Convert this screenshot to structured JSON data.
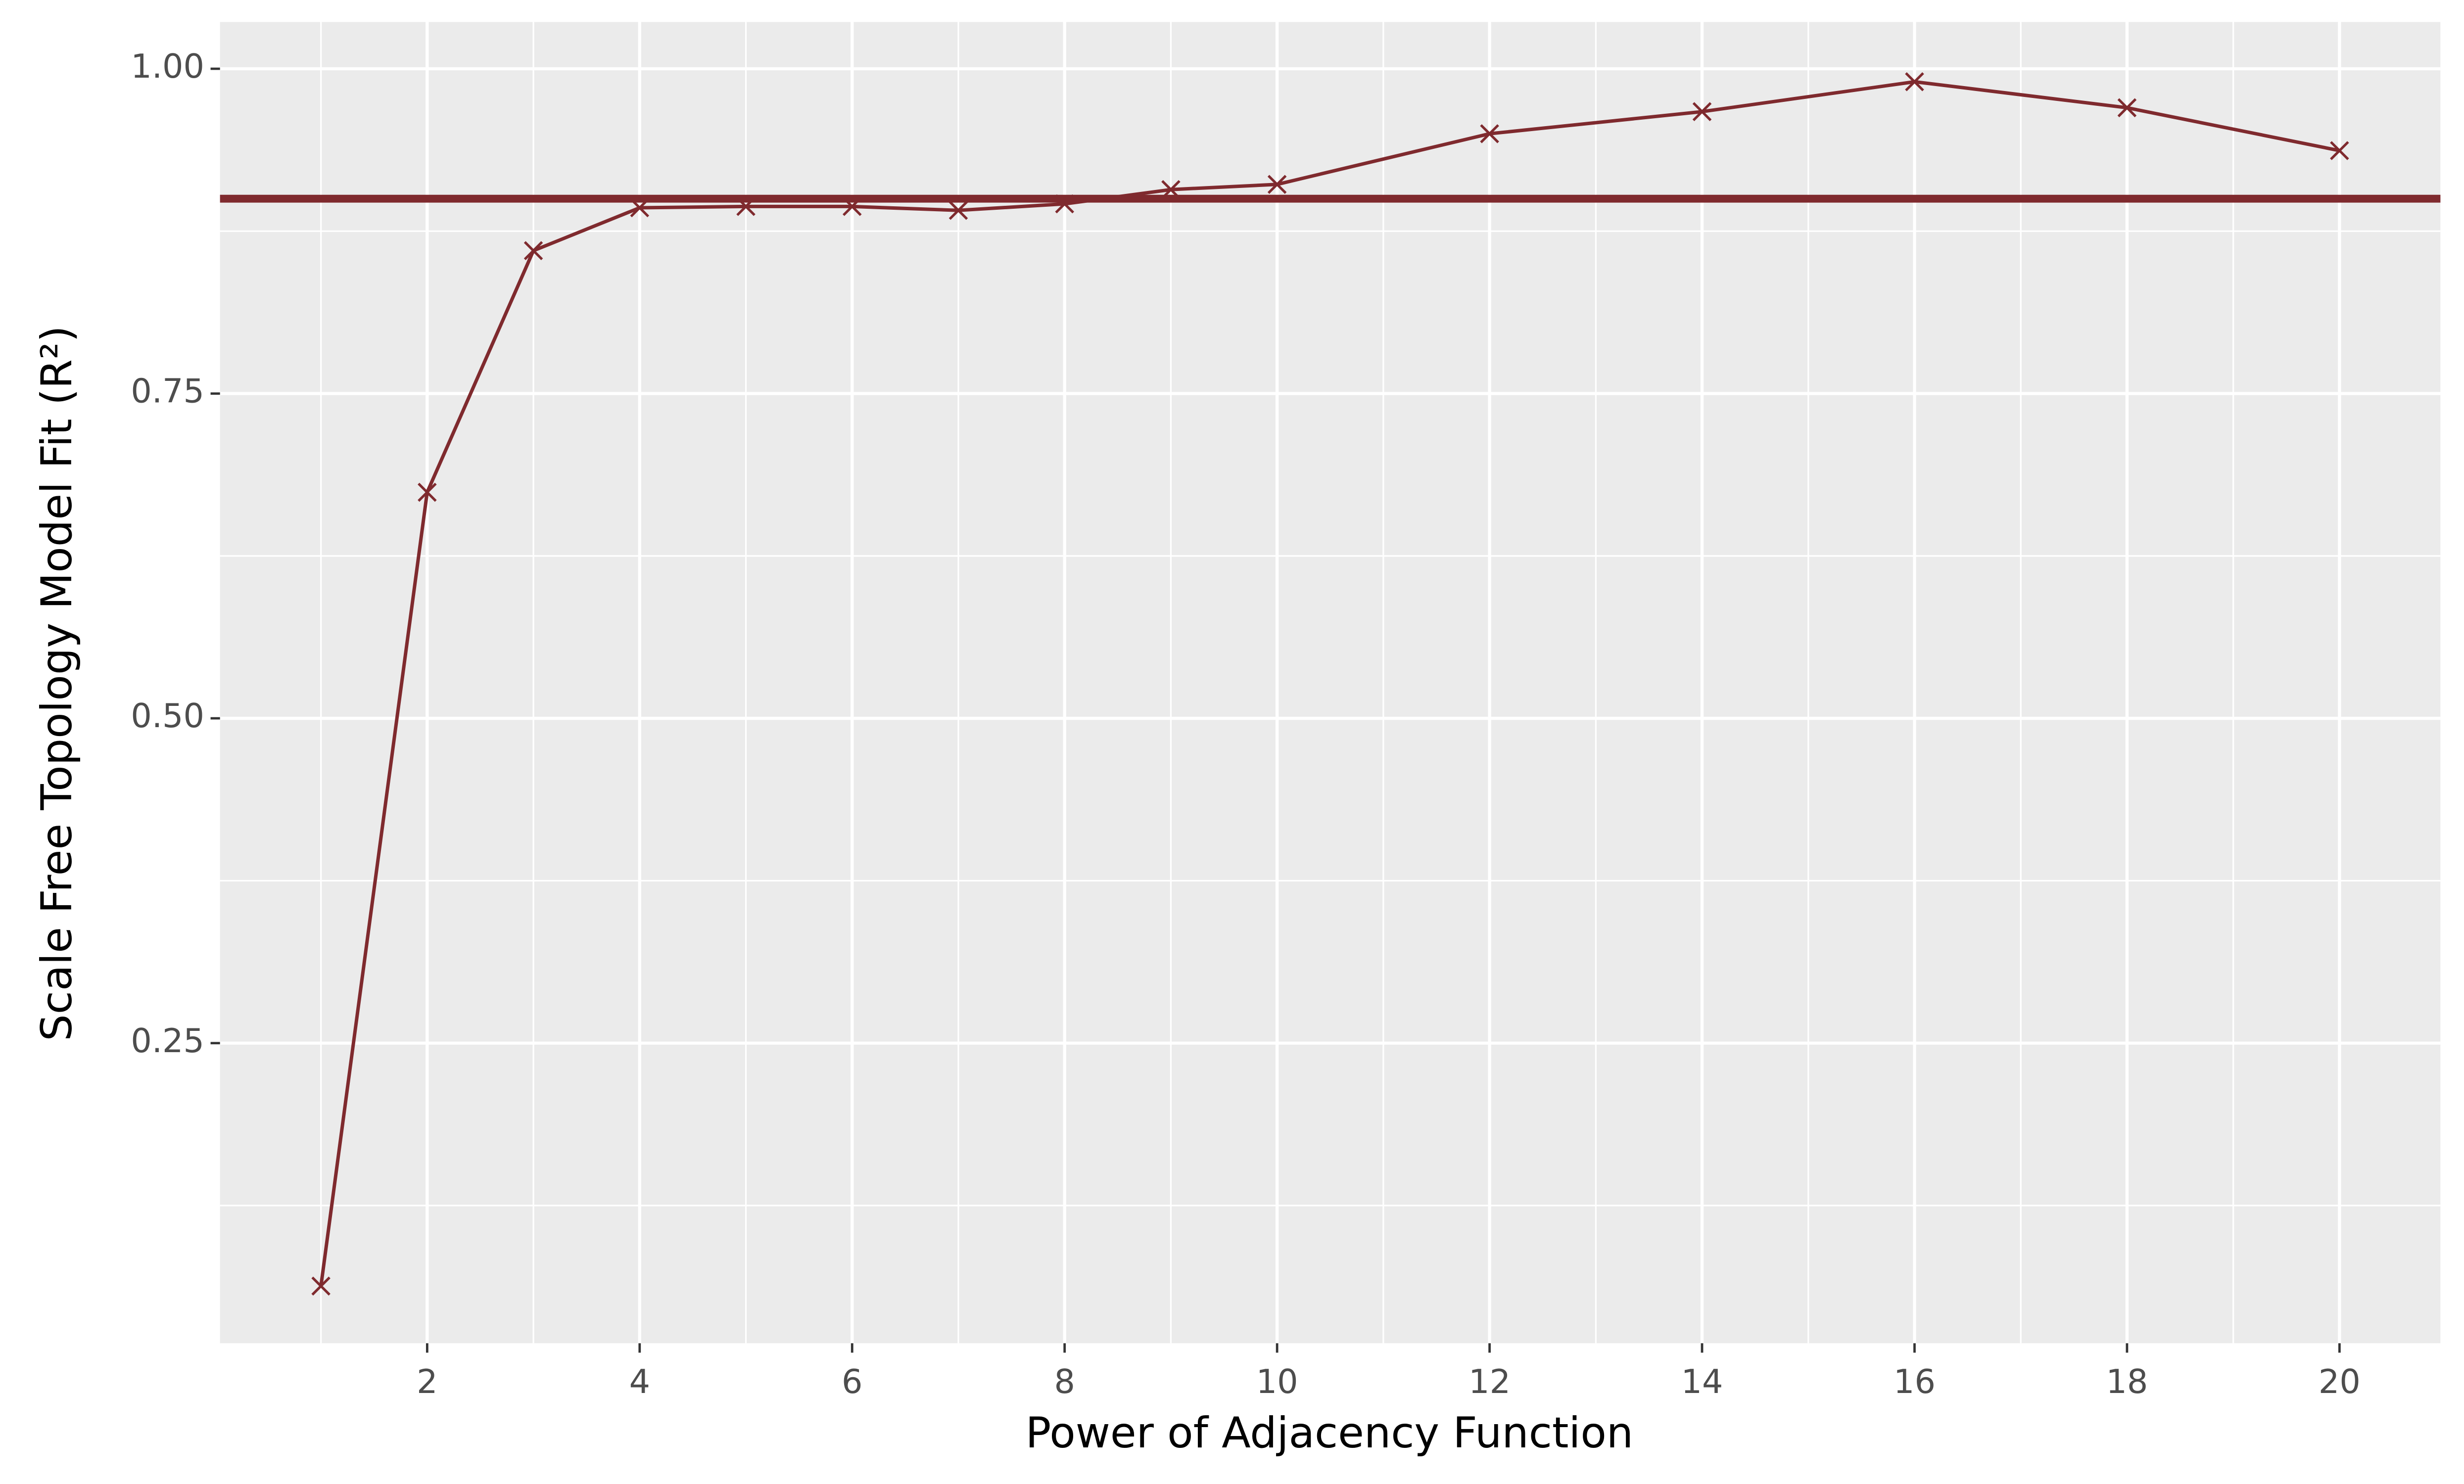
{
  "chart_data": {
    "type": "line",
    "xlabel": "Power of Adjacency Function",
    "ylabel": "Scale Free Topology Model Fit (R²)",
    "x": [
      1,
      2,
      3,
      4,
      5,
      6,
      7,
      8,
      9,
      10,
      12,
      14,
      16,
      18,
      20
    ],
    "series": [
      {
        "name": "Scale Free Topology Model Fit",
        "color": "#7f2a2e",
        "values": [
          0.063,
          0.674,
          0.86,
          0.893,
          0.894,
          0.894,
          0.891,
          0.896,
          0.907,
          0.911,
          0.95,
          0.967,
          0.99,
          0.97,
          0.937
        ]
      }
    ],
    "hline": {
      "value": 0.9,
      "color": "#7f2a2e"
    },
    "xlim": [
      0.05,
      20.95
    ],
    "xticks": [
      2,
      4,
      6,
      8,
      10,
      12,
      14,
      16,
      18,
      20
    ],
    "ylim": [
      0.019,
      1.036
    ],
    "yticks": [
      {
        "value": 0.25,
        "label": "0.25"
      },
      {
        "value": 0.5,
        "label": "0.50"
      },
      {
        "value": 0.75,
        "label": "0.75"
      },
      {
        "value": 1,
        "label": "1.00"
      }
    ],
    "grid": true
  }
}
